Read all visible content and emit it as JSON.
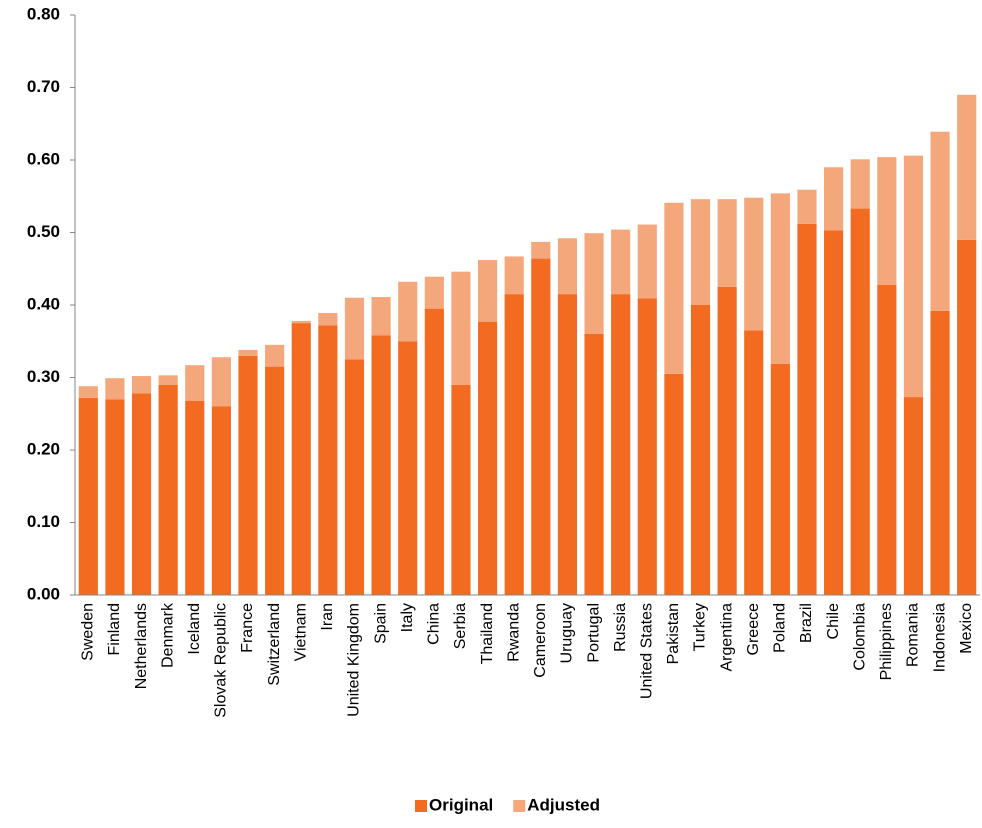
{
  "chart_data": {
    "type": "stacked_bar",
    "categories": [
      "Sweden",
      "Finland",
      "Netherlands",
      "Denmark",
      "Iceland",
      "Slovak Republic",
      "France",
      "Switzerland",
      "Vietnam",
      "Iran",
      "United Kingdom",
      "Spain",
      "Italy",
      "China",
      "Serbia",
      "Thailand",
      "Rwanda",
      "Cameroon",
      "Uruguay",
      "Portugal",
      "Russia",
      "United States",
      "Pakistan",
      "Turkey",
      "Argentina",
      "Greece",
      "Poland",
      "Brazil",
      "Chile",
      "Colombia",
      "Philippines",
      "Romania",
      "Indonesia",
      "Mexico"
    ],
    "series": [
      {
        "name": "Original",
        "color": "#f26b21",
        "values": [
          0.272,
          0.27,
          0.278,
          0.29,
          0.268,
          0.26,
          0.33,
          0.315,
          0.375,
          0.372,
          0.325,
          0.358,
          0.35,
          0.395,
          0.29,
          0.377,
          0.415,
          0.464,
          0.415,
          0.36,
          0.415,
          0.409,
          0.305,
          0.4,
          0.425,
          0.365,
          0.319,
          0.512,
          0.503,
          0.533,
          0.428,
          0.273,
          0.392,
          0.49
        ]
      },
      {
        "name": "Adjusted",
        "color": "#f5a77c",
        "values": [
          0.016,
          0.029,
          0.024,
          0.013,
          0.049,
          0.068,
          0.008,
          0.03,
          0.003,
          0.017,
          0.085,
          0.053,
          0.082,
          0.044,
          0.156,
          0.085,
          0.052,
          0.023,
          0.077,
          0.139,
          0.089,
          0.102,
          0.236,
          0.146,
          0.121,
          0.183,
          0.235,
          0.047,
          0.087,
          0.068,
          0.176,
          0.333,
          0.247,
          0.2
        ]
      }
    ],
    "ylim": [
      0,
      0.8
    ],
    "yticks": [
      {
        "value": 0,
        "label": "0.00"
      },
      {
        "value": 0.1,
        "label": "0.10"
      },
      {
        "value": 0.2,
        "label": "0.20"
      },
      {
        "value": 0.3,
        "label": "0.30"
      },
      {
        "value": 0.4,
        "label": "0.40"
      },
      {
        "value": 0.5,
        "label": "0.50"
      },
      {
        "value": 0.6,
        "label": "0.60"
      },
      {
        "value": 0.7,
        "label": "0.70"
      },
      {
        "value": 0.8,
        "label": "0.80"
      }
    ],
    "grid": false,
    "legend": "bottom"
  }
}
